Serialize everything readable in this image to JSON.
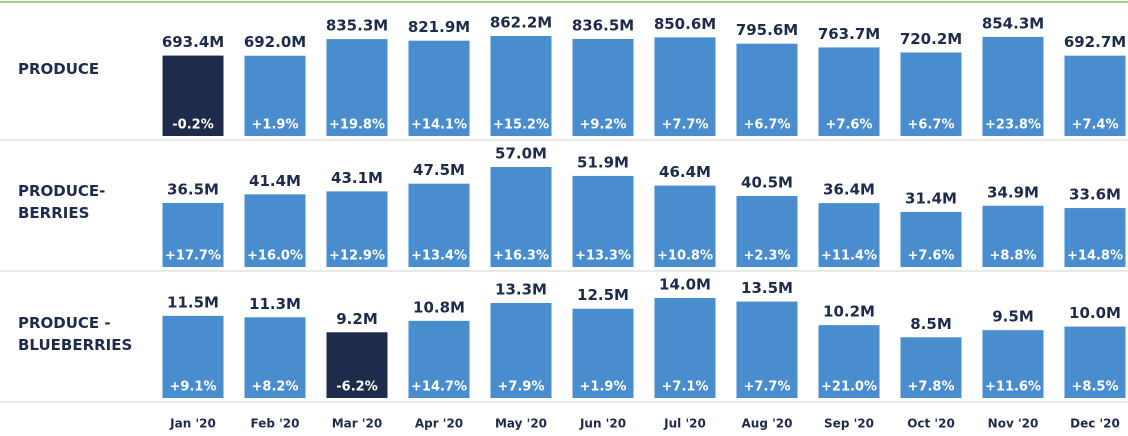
{
  "chart_data": {
    "type": "bar",
    "categories": [
      "Jan '20",
      "Feb '20",
      "Mar '20",
      "Apr '20",
      "May '20",
      "Jun '20",
      "Jul '20",
      "Aug '20",
      "Sep '20",
      "Oct '20",
      "Nov '20",
      "Dec '20"
    ],
    "color": "#4a8dce",
    "highlight_color": "#1f2b4b",
    "series": [
      {
        "name": "PRODUCE",
        "values": [
          693.4,
          692.0,
          835.3,
          821.9,
          862.2,
          836.5,
          850.6,
          795.6,
          763.7,
          720.2,
          854.3,
          692.7
        ],
        "value_labels": [
          "693.4M",
          "692.0M",
          "835.3M",
          "821.9M",
          "862.2M",
          "836.5M",
          "850.6M",
          "795.6M",
          "763.7M",
          "720.2M",
          "854.3M",
          "692.7M"
        ],
        "change": [
          -0.2,
          1.9,
          19.8,
          14.1,
          15.2,
          9.2,
          7.7,
          6.7,
          7.6,
          6.7,
          23.8,
          7.4
        ],
        "change_labels": [
          "-0.2%",
          "+1.9%",
          "+19.8%",
          "+14.1%",
          "+15.2%",
          "+9.2%",
          "+7.7%",
          "+6.7%",
          "+7.6%",
          "+6.7%",
          "+23.8%",
          "+7.4%"
        ]
      },
      {
        "name": "PRODUCE-\nBERRIES",
        "values": [
          36.5,
          41.4,
          43.1,
          47.5,
          57.0,
          51.9,
          46.4,
          40.5,
          36.4,
          31.4,
          34.9,
          33.6
        ],
        "value_labels": [
          "36.5M",
          "41.4M",
          "43.1M",
          "47.5M",
          "57.0M",
          "51.9M",
          "46.4M",
          "40.5M",
          "36.4M",
          "31.4M",
          "34.9M",
          "33.6M"
        ],
        "change": [
          17.7,
          16.0,
          12.9,
          13.4,
          16.3,
          13.3,
          10.8,
          2.3,
          11.4,
          7.6,
          8.8,
          14.8
        ],
        "change_labels": [
          "+17.7%",
          "+16.0%",
          "+12.9%",
          "+13.4%",
          "+16.3%",
          "+13.3%",
          "+10.8%",
          "+2.3%",
          "+11.4%",
          "+7.6%",
          "+8.8%",
          "+14.8%"
        ]
      },
      {
        "name": "PRODUCE -\nBLUEBERRIES",
        "values": [
          11.5,
          11.3,
          9.2,
          10.8,
          13.3,
          12.5,
          14.0,
          13.5,
          10.2,
          8.5,
          9.5,
          10.0
        ],
        "value_labels": [
          "11.5M",
          "11.3M",
          "9.2M",
          "10.8M",
          "13.3M",
          "12.5M",
          "14.0M",
          "13.5M",
          "10.2M",
          "8.5M",
          "9.5M",
          "10.0M"
        ],
        "change": [
          9.1,
          8.2,
          -6.2,
          14.7,
          7.9,
          1.9,
          7.1,
          7.7,
          21.0,
          7.8,
          11.6,
          8.5
        ],
        "change_labels": [
          "+9.1%",
          "+8.2%",
          "-6.2%",
          "+14.7%",
          "+7.9%",
          "+1.9%",
          "+7.1%",
          "+7.7%",
          "+21.0%",
          "+7.8%",
          "+11.6%",
          "+8.5%"
        ]
      }
    ]
  }
}
